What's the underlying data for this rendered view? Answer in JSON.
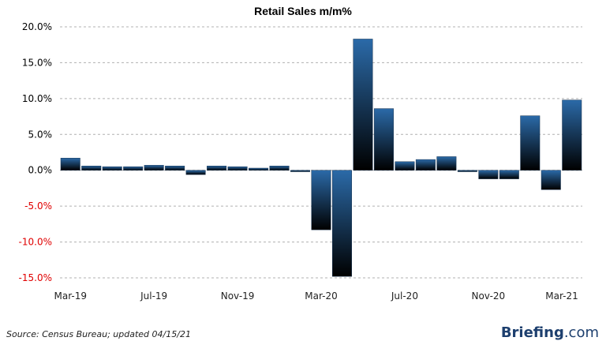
{
  "chart_data": {
    "type": "bar",
    "title": "Retail Sales m/m%",
    "xlabel": "",
    "ylabel": "",
    "ylim": [
      -15,
      20
    ],
    "yticks": [
      "20.0%",
      "15.0%",
      "10.0%",
      "5.0%",
      "0.0%",
      "-5.0%",
      "-10.0%",
      "-15.0%"
    ],
    "ytick_values": [
      20,
      15,
      10,
      5,
      0,
      -5,
      -10,
      -15
    ],
    "grid": true,
    "categories": [
      "Mar-19",
      "Apr-19",
      "May-19",
      "Jun-19",
      "Jul-19",
      "Aug-19",
      "Sep-19",
      "Oct-19",
      "Nov-19",
      "Dec-19",
      "Jan-20",
      "Feb-20",
      "Mar-20",
      "Apr-20",
      "May-20",
      "Jun-20",
      "Jul-20",
      "Aug-20",
      "Sep-20",
      "Oct-20",
      "Nov-20",
      "Dec-20",
      "Jan-21",
      "Feb-21",
      "Mar-21"
    ],
    "values": [
      1.7,
      0.6,
      0.5,
      0.5,
      0.7,
      0.6,
      -0.6,
      0.6,
      0.5,
      0.3,
      0.6,
      -0.2,
      -8.3,
      -14.8,
      18.3,
      8.6,
      1.2,
      1.5,
      1.9,
      -0.2,
      -1.2,
      -1.2,
      7.6,
      -2.7,
      9.8
    ],
    "xtick_labels": [
      "Mar-19",
      "Jul-19",
      "Nov-19",
      "Mar-20",
      "Jul-20",
      "Nov-20",
      "Mar-21"
    ],
    "xtick_indices": [
      0,
      4,
      8,
      12,
      16,
      20,
      24
    ]
  },
  "footer": {
    "source": "Source: Census Bureau; updated 04/15/21",
    "brand_main": "Briefing",
    "brand_domain": ".com"
  },
  "colors": {
    "bar_top": "#2b6aa8",
    "bar_bottom": "#000000",
    "negative_tick": "#e00000",
    "positive_tick": "#000000",
    "grid": "#b0b0b0"
  }
}
